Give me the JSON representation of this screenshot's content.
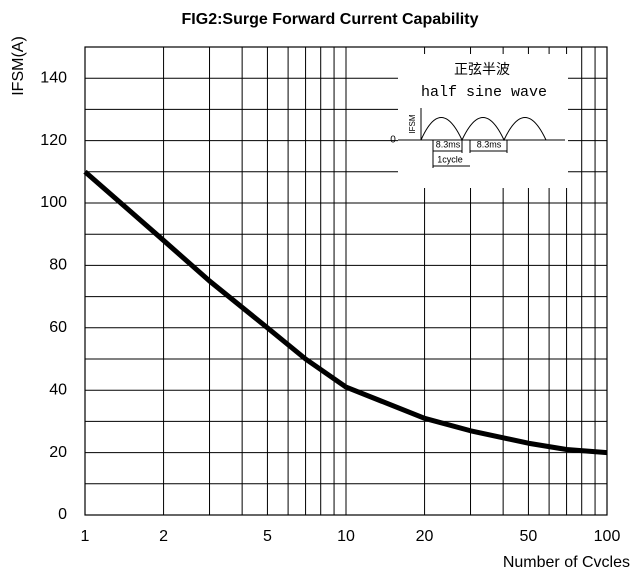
{
  "chart_data": {
    "type": "line",
    "title": "FIG2:Surge Forward Current Capability",
    "y_label": "IFSM(A)",
    "x_label": "Number of Cvcles",
    "log_x": true,
    "grid": true,
    "xlim": [
      1,
      100
    ],
    "ylim": [
      0,
      150
    ],
    "xticks": [
      1,
      2,
      5,
      10,
      20,
      50,
      100
    ],
    "xminorticks": [
      3,
      4,
      6,
      7,
      8,
      9,
      30,
      40,
      60,
      70,
      80,
      90
    ],
    "yticks": [
      0,
      20,
      40,
      60,
      80,
      100,
      120,
      140
    ],
    "yminorticks": [
      10,
      30,
      50,
      70,
      90,
      110,
      130,
      150
    ],
    "series": [
      {
        "name": "IFSM",
        "color": "#000000",
        "x": [
          1,
          2,
          3,
          5,
          7,
          10,
          20,
          30,
          50,
          70,
          100
        ],
        "values": [
          110,
          88,
          75,
          60,
          50,
          41,
          31,
          27,
          23,
          21,
          20
        ]
      }
    ],
    "inset": {
      "title_cn": "正弦半波",
      "title_en": "half sine wave",
      "axis_label": "IFSM",
      "zero": "0",
      "period1": "8.3ms",
      "period2": "8.3ms",
      "cycle": "1cycle"
    }
  }
}
